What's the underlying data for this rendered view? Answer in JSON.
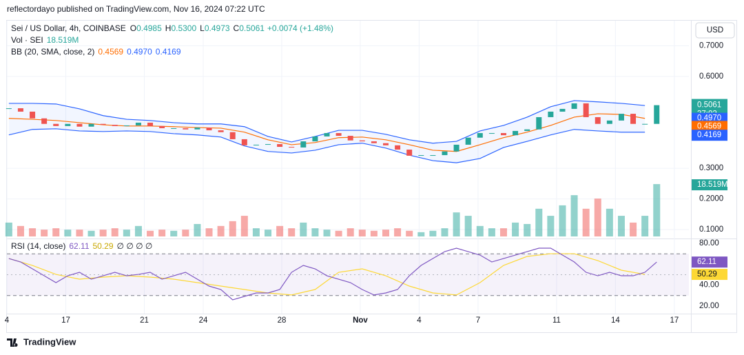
{
  "header": {
    "published": "reflectordayo published on TradingView.com, Nov 16, 2024 07:22 UTC",
    "currency": "USD"
  },
  "footer": {
    "brand": "TradingView"
  },
  "chart_data": {
    "type": "candlestick",
    "title": "Sei / US Dollar, 4h, COINBASE",
    "ohlc": [
      {
        "prefix": "O",
        "value": 0.4985,
        "label": "0.4985"
      },
      {
        "prefix": "H",
        "value": 0.53,
        "label": "0.5300"
      },
      {
        "prefix": "L",
        "value": 0.4973,
        "label": "0.4973"
      },
      {
        "prefix": "C",
        "value": 0.5061,
        "label": "0.5061"
      }
    ],
    "change": "+0.0074 (+1.48%)",
    "countdown": "37:02",
    "colors": {
      "up": "#26a69a",
      "down": "#ef5350",
      "band": "#2962ff",
      "basis": "#ff6d00",
      "rsi": "#7e57c2",
      "rsi_ma": "#fdd835"
    },
    "x": [
      0.1,
      0.7,
      1.3,
      1.9,
      2.5,
      3.1,
      3.7,
      4.3,
      4.9,
      5.5,
      6.1,
      6.7,
      7.3,
      7.9,
      8.5,
      9.1,
      9.7,
      10.3,
      10.9,
      11.5,
      12.1,
      12.7,
      13.3,
      13.9,
      14.5,
      15.1,
      15.7,
      16.3,
      16.9,
      17.5,
      18.1,
      18.7,
      19.3,
      19.9,
      20.5,
      21.1,
      21.7,
      22.3,
      22.9,
      23.5,
      24.1,
      24.7,
      25.3,
      25.9,
      26.5,
      27.1,
      27.7,
      28.3,
      28.9,
      29.5,
      30.1,
      30.7,
      31.3,
      31.9,
      32.5,
      33.1
    ],
    "close": [
      0.496,
      0.485,
      0.463,
      0.445,
      0.438,
      0.445,
      0.436,
      0.445,
      0.442,
      0.438,
      0.44,
      0.449,
      0.438,
      0.431,
      0.431,
      0.427,
      0.433,
      0.424,
      0.418,
      0.395,
      0.375,
      0.377,
      0.379,
      0.37,
      0.368,
      0.388,
      0.404,
      0.415,
      0.406,
      0.391,
      0.388,
      0.382,
      0.375,
      0.361,
      0.341,
      0.343,
      0.343,
      0.355,
      0.377,
      0.4,
      0.415,
      0.415,
      0.408,
      0.422,
      0.427,
      0.467,
      0.485,
      0.494,
      0.512,
      0.467,
      0.445,
      0.456,
      0.478,
      0.445,
      0.445,
      0.5061
    ],
    "xlim": [
      0,
      34.74
    ],
    "xticks": [
      {
        "value": 0,
        "label": "4"
      },
      {
        "value": 3,
        "label": "17"
      },
      {
        "value": 7,
        "label": "21"
      },
      {
        "value": 10,
        "label": "24"
      },
      {
        "value": 14,
        "label": "28"
      },
      {
        "value": 18,
        "label": "Nov"
      },
      {
        "value": 21,
        "label": "4"
      },
      {
        "value": 24,
        "label": "7"
      },
      {
        "value": 28,
        "label": "11"
      },
      {
        "value": 31,
        "label": "14"
      },
      {
        "value": 34,
        "label": "17"
      }
    ],
    "ylim": [
      0.073,
      0.782
    ],
    "yticks": [
      {
        "value": 0.7,
        "label": "0.7000"
      },
      {
        "value": 0.6,
        "label": "0.6000"
      },
      {
        "value": 0.3,
        "label": "0.3000"
      },
      {
        "value": 0.2,
        "label": "0.2000"
      },
      {
        "value": 0.1,
        "label": "0.1000"
      }
    ],
    "volume": {
      "name": "Vol · SEI",
      "last": {
        "value": 18.519,
        "label": "18.519M"
      },
      "ylim": [
        0,
        40
      ],
      "values": [
        4.9,
        3.7,
        2.9,
        2.4,
        2.9,
        2.4,
        2.4,
        2.0,
        2.4,
        2.9,
        2.4,
        3.7,
        2.0,
        2.4,
        2.0,
        2.4,
        4.4,
        2.9,
        3.7,
        5.4,
        7.3,
        2.9,
        2.4,
        3.7,
        2.9,
        4.9,
        2.9,
        2.4,
        2.0,
        2.9,
        2.4,
        2.0,
        2.4,
        2.9,
        2.0,
        1.5,
        2.0,
        2.9,
        8.5,
        7.3,
        3.7,
        2.9,
        2.9,
        4.9,
        4.4,
        9.8,
        7.3,
        11,
        14.6,
        9.8,
        13.4,
        9.8,
        7.3,
        4.9,
        7.3,
        18.519
      ]
    },
    "bollinger": {
      "name": "BB (20, SMA, close, 2)",
      "basis_last": {
        "value": 0.4569,
        "label": "0.4569"
      },
      "upper_last": {
        "value": 0.497,
        "label": "0.4970"
      },
      "lower_last": {
        "value": 0.4169,
        "label": "0.4169"
      },
      "x": [
        0.1,
        1.3,
        2.5,
        3.7,
        4.9,
        6.1,
        7.3,
        8.5,
        9.7,
        10.9,
        12.1,
        13.3,
        14.5,
        15.7,
        16.9,
        18.1,
        19.3,
        20.5,
        21.7,
        22.9,
        24.1,
        25.3,
        26.5,
        27.7,
        28.9,
        30.1,
        31.3,
        32.5
      ],
      "upper": [
        0.512,
        0.512,
        0.51,
        0.494,
        0.472,
        0.46,
        0.456,
        0.449,
        0.445,
        0.445,
        0.436,
        0.404,
        0.386,
        0.404,
        0.424,
        0.424,
        0.411,
        0.393,
        0.382,
        0.388,
        0.422,
        0.44,
        0.467,
        0.501,
        0.521,
        0.517,
        0.512,
        0.505
      ],
      "middle": [
        0.463,
        0.46,
        0.456,
        0.449,
        0.442,
        0.438,
        0.438,
        0.436,
        0.433,
        0.431,
        0.418,
        0.393,
        0.377,
        0.384,
        0.4,
        0.402,
        0.393,
        0.377,
        0.359,
        0.355,
        0.377,
        0.4,
        0.418,
        0.44,
        0.467,
        0.478,
        0.476,
        0.463
      ],
      "lower": [
        0.409,
        0.427,
        0.429,
        0.422,
        0.42,
        0.422,
        0.42,
        0.413,
        0.409,
        0.402,
        0.373,
        0.355,
        0.35,
        0.359,
        0.377,
        0.382,
        0.366,
        0.343,
        0.325,
        0.318,
        0.332,
        0.368,
        0.388,
        0.409,
        0.427,
        0.422,
        0.418,
        0.418
      ]
    },
    "rsi": {
      "name": "RSI (14, close)",
      "last": 62.11,
      "ma_last": 50.29,
      "extra": "∅ ∅ ∅ ∅",
      "ylim": [
        12.7,
        84
      ],
      "bands": [
        30,
        70
      ],
      "yticks": [
        {
          "value": 80,
          "label": "80.00"
        },
        {
          "value": 40,
          "label": "40.00"
        },
        {
          "value": 20,
          "label": "20.00"
        }
      ],
      "values": [
        65.5,
        62.2,
        55.6,
        49,
        42.4,
        49,
        52.3,
        45.7,
        49,
        52.3,
        49,
        50.3,
        52.3,
        45.7,
        49,
        52.3,
        45.7,
        39.1,
        35.8,
        25.9,
        29.2,
        32.5,
        32.5,
        35.8,
        52.3,
        58.9,
        55.6,
        49,
        45.7,
        42.4,
        35.8,
        30.6,
        32.5,
        35.8,
        49,
        58.9,
        65.5,
        72.1,
        75.4,
        72.1,
        68.8,
        62.2,
        65.5,
        68.8,
        72.1,
        75.4,
        75.4,
        68.8,
        62.2,
        52.3,
        49,
        52.3,
        49,
        49,
        52.3,
        62.11
      ],
      "ma": [
        65.5,
        58.9,
        50.3,
        45.7,
        47.7,
        49,
        47.7,
        45.7,
        42.4,
        39.1,
        35.8,
        32.5,
        30.6,
        35.8,
        52.3,
        55.6,
        49,
        39.1,
        32.5,
        30.6,
        42.4,
        58.9,
        67.5,
        70.1,
        70.1,
        63.5,
        54.3,
        50.29
      ]
    }
  }
}
